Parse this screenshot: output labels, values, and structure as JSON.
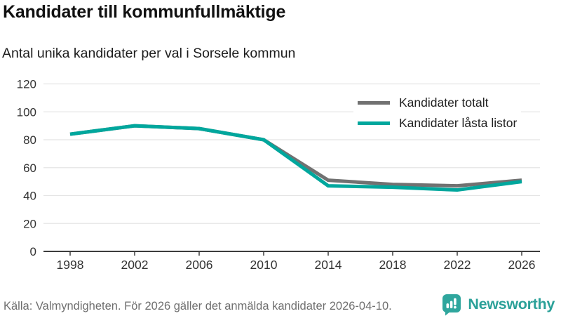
{
  "header": {
    "title": "Kandidater till kommunfullmäktige",
    "subtitle": "Antal unika kandidater per val i Sorsele kommun"
  },
  "chart_data": {
    "type": "line",
    "x": [
      1998,
      2002,
      2006,
      2010,
      2014,
      2018,
      2022,
      2026
    ],
    "series": [
      {
        "name": "Kandidater totalt",
        "color": "#717171",
        "values": [
          84,
          90,
          88,
          80,
          51,
          48,
          47,
          51
        ]
      },
      {
        "name": "Kandidater låsta listor",
        "color": "#00a79d",
        "values": [
          84,
          90,
          88,
          80,
          47,
          46,
          44,
          50
        ]
      }
    ],
    "ylabel": "",
    "xlabel": "",
    "ylim": [
      0,
      120
    ],
    "yticks": [
      0,
      20,
      40,
      60,
      80,
      100,
      120
    ],
    "grid": true,
    "legend_position": "top-right"
  },
  "footer": {
    "source": "Källa: Valmyndigheten. För 2026 gäller det anmälda kandidater 2026-04-10.",
    "brand": "Newsworthy"
  },
  "colors": {
    "grid": "#e4e4e4",
    "axis": "#3c3c3c",
    "tick_text": "#333333",
    "brand_teal": "#2ba199"
  }
}
